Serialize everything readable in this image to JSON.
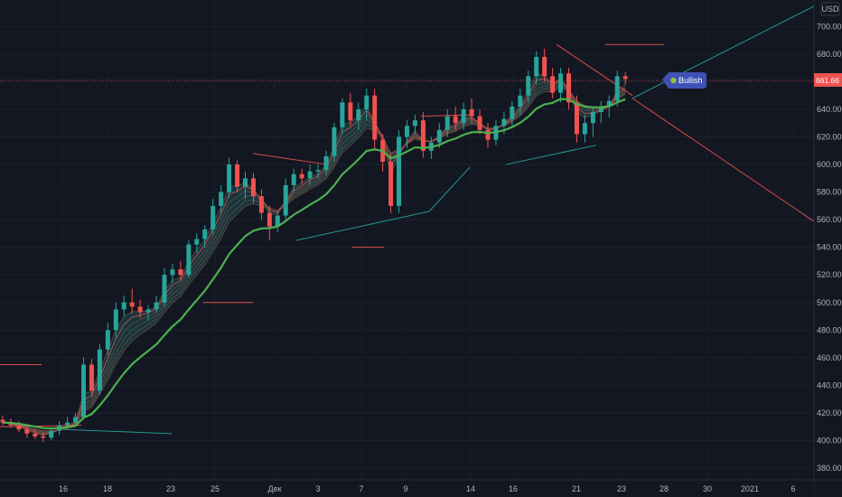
{
  "chart_data": {
    "type": "candlestick",
    "currency": "USD",
    "last_price": "661.66",
    "signal_label": "Bullish",
    "x_tick_labels": [
      "16",
      "18",
      "23",
      "25",
      "Дек",
      "3",
      "7",
      "9",
      "14",
      "16",
      "21",
      "23",
      "28",
      "30",
      "2021",
      "6"
    ],
    "y_tick_labels": [
      "380.00",
      "400.00",
      "420.00",
      "440.00",
      "460.00",
      "480.00",
      "500.00",
      "520.00",
      "540.00",
      "560.00",
      "580.00",
      "600.00",
      "620.00",
      "640.00",
      "660.00",
      "680.00",
      "700.00"
    ],
    "ylim": [
      370,
      720
    ],
    "candles": [
      [
        415,
        418,
        411,
        413
      ],
      [
        413,
        416,
        409,
        411
      ],
      [
        411,
        414,
        406,
        408
      ],
      [
        408,
        411,
        402,
        405
      ],
      [
        405,
        408,
        401,
        403
      ],
      [
        403,
        406,
        399,
        402
      ],
      [
        402,
        409,
        400,
        407
      ],
      [
        407,
        414,
        404,
        411
      ],
      [
        411,
        417,
        408,
        413
      ],
      [
        413,
        420,
        411,
        417
      ],
      [
        417,
        460,
        415,
        455
      ],
      [
        455,
        459,
        432,
        436
      ],
      [
        436,
        470,
        433,
        466
      ],
      [
        466,
        485,
        462,
        480
      ],
      [
        480,
        500,
        475,
        495
      ],
      [
        495,
        505,
        490,
        500
      ],
      [
        500,
        510,
        492,
        497
      ],
      [
        497,
        502,
        489,
        493
      ],
      [
        493,
        498,
        487,
        495
      ],
      [
        495,
        505,
        493,
        500
      ],
      [
        500,
        525,
        497,
        520
      ],
      [
        520,
        528,
        514,
        524
      ],
      [
        524,
        530,
        516,
        520
      ],
      [
        520,
        545,
        518,
        542
      ],
      [
        542,
        550,
        536,
        546
      ],
      [
        546,
        556,
        540,
        553
      ],
      [
        553,
        575,
        549,
        570
      ],
      [
        570,
        585,
        565,
        580
      ],
      [
        580,
        605,
        576,
        600
      ],
      [
        600,
        603,
        580,
        584
      ],
      [
        584,
        595,
        575,
        590
      ],
      [
        590,
        594,
        572,
        577
      ],
      [
        577,
        582,
        560,
        565
      ],
      [
        565,
        570,
        545,
        555
      ],
      [
        555,
        566,
        551,
        563
      ],
      [
        563,
        590,
        560,
        585
      ],
      [
        585,
        597,
        580,
        593
      ],
      [
        593,
        597,
        586,
        590
      ],
      [
        590,
        600,
        585,
        595
      ],
      [
        595,
        600,
        590,
        596
      ],
      [
        596,
        610,
        592,
        606
      ],
      [
        606,
        630,
        602,
        627
      ],
      [
        627,
        648,
        622,
        645
      ],
      [
        645,
        652,
        628,
        632
      ],
      [
        632,
        645,
        625,
        640
      ],
      [
        640,
        655,
        632,
        650
      ],
      [
        650,
        655,
        610,
        618
      ],
      [
        618,
        622,
        595,
        602
      ],
      [
        602,
        608,
        565,
        570
      ],
      [
        570,
        625,
        565,
        620
      ],
      [
        620,
        632,
        612,
        628
      ],
      [
        628,
        636,
        622,
        632
      ],
      [
        632,
        638,
        605,
        610
      ],
      [
        610,
        620,
        604,
        616
      ],
      [
        616,
        630,
        612,
        625
      ],
      [
        625,
        640,
        620,
        635
      ],
      [
        635,
        642,
        625,
        630
      ],
      [
        630,
        645,
        625,
        640
      ],
      [
        640,
        648,
        630,
        635
      ],
      [
        635,
        640,
        622,
        625
      ],
      [
        625,
        630,
        612,
        618
      ],
      [
        618,
        632,
        614,
        628
      ],
      [
        628,
        638,
        622,
        633
      ],
      [
        633,
        646,
        628,
        642
      ],
      [
        642,
        655,
        636,
        650
      ],
      [
        650,
        668,
        645,
        664
      ],
      [
        664,
        682,
        658,
        678
      ],
      [
        678,
        684,
        660,
        664
      ],
      [
        664,
        670,
        648,
        652
      ],
      [
        652,
        670,
        645,
        666
      ],
      [
        666,
        670,
        640,
        645
      ],
      [
        645,
        650,
        616,
        622
      ],
      [
        622,
        636,
        616,
        630
      ],
      [
        630,
        642,
        620,
        638
      ],
      [
        638,
        646,
        630,
        642
      ],
      [
        642,
        650,
        634,
        646
      ],
      [
        646,
        668,
        642,
        664
      ],
      [
        664,
        667,
        658,
        662
      ]
    ],
    "xlabel": "",
    "ylabel": "",
    "grid": true,
    "up_color": "#26a69a",
    "down_color": "#ef5350",
    "ma_color": "#4caf50"
  }
}
